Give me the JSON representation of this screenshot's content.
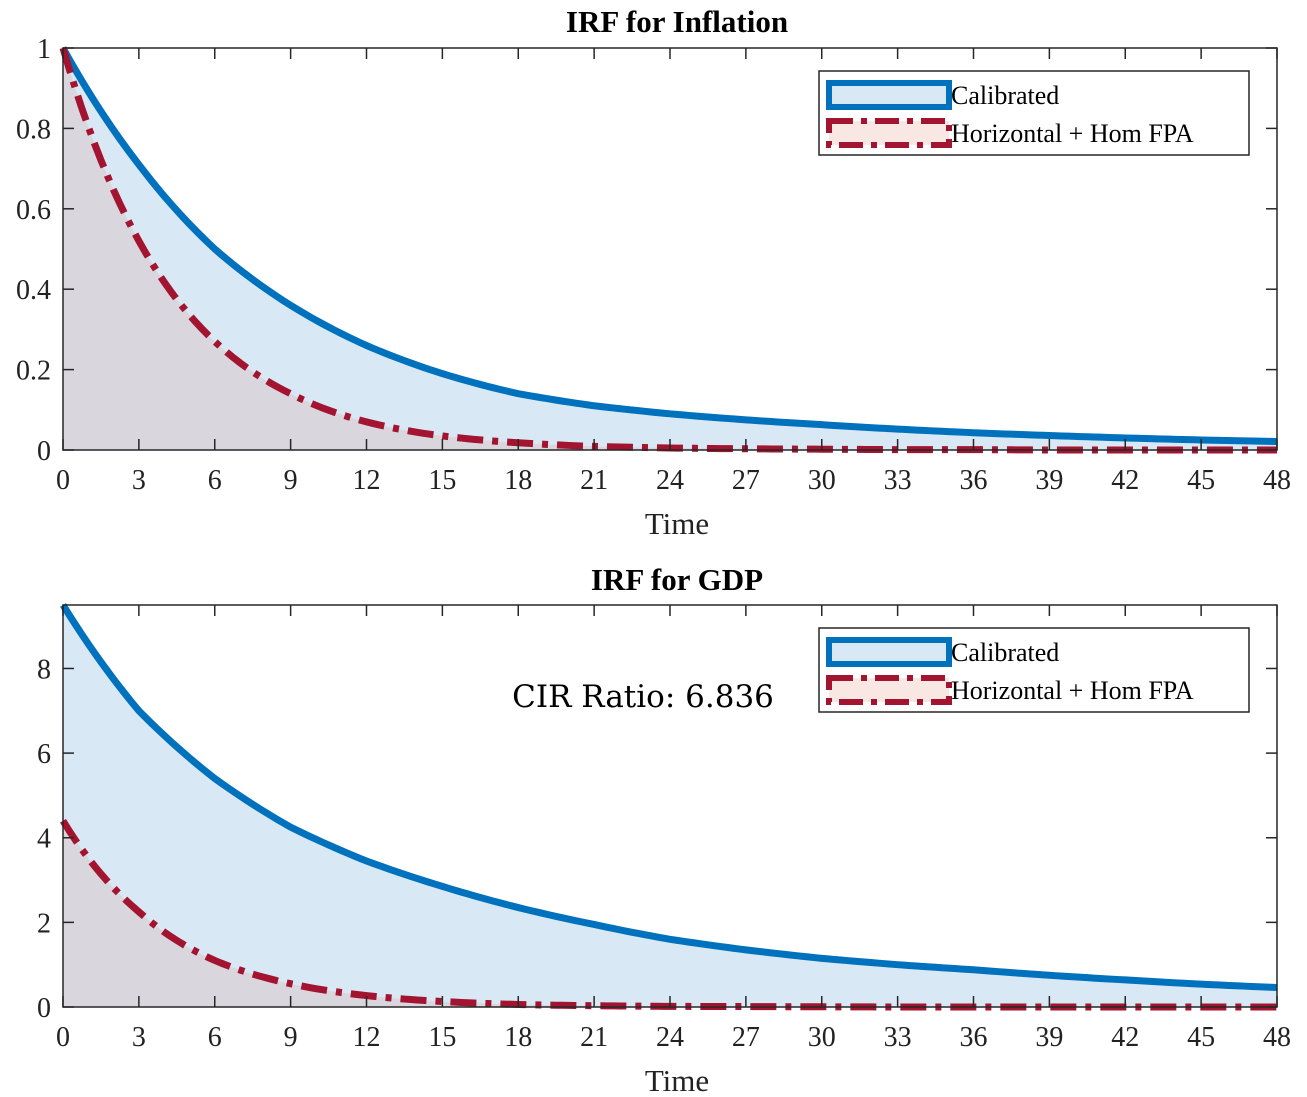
{
  "chart_data": [
    {
      "type": "area",
      "title": "IRF for Inflation",
      "xlabel": "Time",
      "ylabel": "",
      "xlim": [
        0,
        48
      ],
      "ylim": [
        0,
        1
      ],
      "xticks": [
        0,
        3,
        6,
        9,
        12,
        15,
        18,
        21,
        24,
        27,
        30,
        33,
        36,
        39,
        42,
        45,
        48
      ],
      "xtick_labels": [
        "0",
        "3",
        "6",
        "9",
        "12",
        "15",
        "18",
        "21",
        "24",
        "27",
        "30",
        "33",
        "36",
        "39",
        "42",
        "45",
        "48"
      ],
      "yticks": [
        0,
        0.2,
        0.4,
        0.6,
        0.8,
        1
      ],
      "ytick_labels": [
        "0",
        "0.2",
        "0.4",
        "0.6",
        "0.8",
        "1"
      ],
      "legend_position": "top-right",
      "grid": false,
      "annotation": "",
      "series": [
        {
          "name": "Calibrated",
          "line_color": "#0072BD",
          "fill_color": "#D9E8F5",
          "line_style": "solid",
          "x": [
            0,
            3,
            6,
            9,
            12,
            15,
            18,
            21,
            24,
            27,
            30,
            33,
            36,
            39,
            42,
            45,
            48
          ],
          "y": [
            1.0,
            0.71,
            0.5,
            0.36,
            0.26,
            0.19,
            0.14,
            0.11,
            0.09,
            0.075,
            0.063,
            0.052,
            0.043,
            0.036,
            0.03,
            0.025,
            0.021
          ]
        },
        {
          "name": "Horizontal + Hom FPA",
          "line_color": "#A2142F",
          "fill_color": "#F8E7E3",
          "line_style": "dashdot",
          "x": [
            0,
            3,
            6,
            9,
            12,
            15,
            18,
            21,
            24,
            27,
            30,
            33,
            36,
            39,
            42,
            45,
            48
          ],
          "y": [
            1.0,
            0.52,
            0.27,
            0.14,
            0.07,
            0.035,
            0.018,
            0.009,
            0.005,
            0.003,
            0.002,
            0.001,
            0.001,
            0.0,
            0.0,
            0.0,
            0.0
          ]
        }
      ]
    },
    {
      "type": "area",
      "title": "IRF for GDP",
      "xlabel": "Time",
      "ylabel": "",
      "xlim": [
        0,
        48
      ],
      "ylim": [
        0,
        9.5
      ],
      "xticks": [
        0,
        3,
        6,
        9,
        12,
        15,
        18,
        21,
        24,
        27,
        30,
        33,
        36,
        39,
        42,
        45,
        48
      ],
      "xtick_labels": [
        "0",
        "3",
        "6",
        "9",
        "12",
        "15",
        "18",
        "21",
        "24",
        "27",
        "30",
        "33",
        "36",
        "39",
        "42",
        "45",
        "48"
      ],
      "yticks": [
        0,
        2,
        4,
        6,
        8
      ],
      "ytick_labels": [
        "0",
        "2",
        "4",
        "6",
        "8"
      ],
      "legend_position": "top-right",
      "grid": false,
      "annotation": "CIR Ratio:  6.836",
      "series": [
        {
          "name": "Calibrated",
          "line_color": "#0072BD",
          "fill_color": "#D9E8F5",
          "line_style": "solid",
          "x": [
            0,
            3,
            6,
            9,
            12,
            15,
            18,
            21,
            24,
            27,
            30,
            33,
            36,
            39,
            42,
            45,
            48
          ],
          "y": [
            9.5,
            7.0,
            5.4,
            4.25,
            3.45,
            2.85,
            2.35,
            1.95,
            1.6,
            1.35,
            1.15,
            1.0,
            0.88,
            0.75,
            0.64,
            0.54,
            0.46
          ]
        },
        {
          "name": "Horizontal + Hom FPA",
          "line_color": "#A2142F",
          "fill_color": "#F8E7E3",
          "line_style": "dashdot",
          "x": [
            0,
            3,
            6,
            9,
            12,
            15,
            18,
            21,
            24,
            27,
            30,
            33,
            36,
            39,
            42,
            45,
            48
          ],
          "y": [
            4.4,
            2.25,
            1.1,
            0.55,
            0.27,
            0.13,
            0.06,
            0.03,
            0.015,
            0.01,
            0.005,
            0.0,
            0.0,
            0.0,
            0.0,
            0.0,
            0.0
          ]
        }
      ]
    }
  ]
}
